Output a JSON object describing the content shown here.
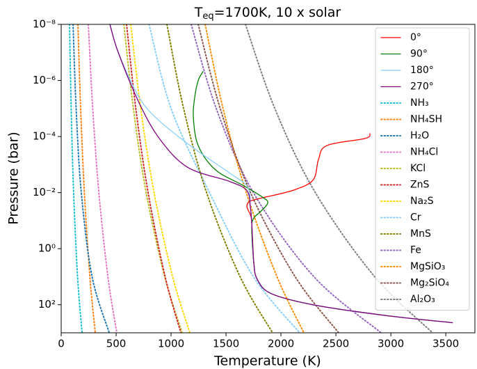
{
  "chart_data": {
    "type": "line",
    "title": [
      "T",
      "eq",
      "=1700K, 10 x solar"
    ],
    "x_label": "Temperature (K)",
    "y_label": "Pressure (bar)",
    "xlim": [
      0,
      3765
    ],
    "xticks": [
      0,
      500,
      1000,
      1500,
      2000,
      2500,
      3000,
      3500
    ],
    "ylim": [
      1000,
      1e-08
    ],
    "y_log": true,
    "yticks": [
      {
        "value": 1e-08,
        "label": "10⁻⁸"
      },
      {
        "value": 1e-06,
        "label": "10⁻⁶"
      },
      {
        "value": 0.0001,
        "label": "10⁻⁴"
      },
      {
        "value": 0.01,
        "label": "10⁻²"
      },
      {
        "value": 1,
        "label": "10⁰"
      },
      {
        "value": 100,
        "label": "10²"
      }
    ],
    "legend": "upper right",
    "series": [
      {
        "name": "0°",
        "color": "#ff0000",
        "style": "solid",
        "x": [
          2810,
          2766,
          2418,
          2342,
          2291,
          2101,
          1848,
          1722,
          1690,
          1722,
          1734,
          1753,
          1785,
          1911,
          2291,
          2924,
          3560
        ],
        "values": [
          7.9e-05,
          0.000117,
          0.00021,
          0.00065,
          0.0036,
          0.0085,
          0.0148,
          0.02,
          0.031,
          0.063,
          0.12,
          3.2,
          12.6,
          40,
          100,
          234,
          437
        ]
      },
      {
        "name": "90°",
        "color": "#008000",
        "style": "solid",
        "x": [
          1291,
          1247,
          1215,
          1203,
          1247,
          1405,
          1658,
          1835,
          1880,
          1816,
          1753,
          1734,
          1753,
          1785,
          1911,
          2291,
          2924,
          3560
        ],
        "values": [
          4.8e-07,
          1e-06,
          4e-06,
          2.1e-05,
          0.00021,
          0.00155,
          0.0056,
          0.0148,
          0.0234,
          0.047,
          0.081,
          0.19,
          3.2,
          12.6,
          40,
          100,
          234,
          437
        ]
      },
      {
        "name": "180°",
        "color": "#87cefa",
        "style": "solid",
        "x": [
          445,
          520,
          709,
          899,
          1215,
          1532,
          1696,
          1722,
          1734,
          1753,
          1785,
          1911,
          2291,
          2924,
          3560
        ],
        "values": [
          1e-08,
          1e-07,
          4e-06,
          2.9e-05,
          0.000275,
          0.002,
          0.0063,
          0.035,
          0.12,
          3.2,
          12.6,
          40,
          100,
          234,
          437
        ]
      },
      {
        "name": "270°",
        "color": "#800080",
        "style": "solid",
        "x": [
          443,
          519,
          709,
          899,
          1152,
          1532,
          1690,
          1722,
          1734,
          1753,
          1785,
          1911,
          2291,
          2924,
          3560
        ],
        "values": [
          1e-08,
          1e-07,
          6.3e-06,
          0.000126,
          0.00126,
          0.004,
          0.0085,
          0.035,
          0.12,
          3.2,
          12.6,
          40,
          100,
          234,
          437
        ]
      },
      {
        "name": "NH₃",
        "color": "#17becf",
        "style": "dotted",
        "x": [
          76,
          91,
          113,
          149,
          190
        ],
        "values": [
          1e-08,
          1e-05,
          0.01,
          10,
          1000
        ]
      },
      {
        "name": "NH₄SH",
        "color": "#ff7f0e",
        "style": "dotted",
        "x": [
          152,
          177,
          211,
          261,
          310
        ],
        "values": [
          1e-08,
          1e-05,
          0.01,
          10,
          1000
        ]
      },
      {
        "name": "H₂O",
        "color": "#1f77b4",
        "style": "dotted",
        "x": [
          108,
          136,
          183,
          281,
          437
        ],
        "values": [
          1e-08,
          1e-05,
          0.01,
          10,
          1000
        ]
      },
      {
        "name": "NH₄Cl",
        "color": "#e377c2",
        "style": "dotted",
        "x": [
          247,
          287,
          343,
          425,
          506
        ],
        "values": [
          1e-08,
          1e-05,
          0.01,
          10,
          1000
        ]
      },
      {
        "name": "KCl",
        "color": "#bcbd22",
        "style": "dotted",
        "x": [
          570,
          657,
          773,
          942,
          1101
        ],
        "values": [
          1e-08,
          1e-05,
          0.01,
          10,
          1000
        ]
      },
      {
        "name": "ZnS",
        "color": "#d62728",
        "style": "dotted",
        "x": [
          595,
          679,
          791,
          946,
          1089
        ],
        "values": [
          1e-08,
          1e-05,
          0.01,
          10,
          1000
        ]
      },
      {
        "name": "Na₂S",
        "color": "#ffd700",
        "style": "dotted",
        "x": [
          633,
          724,
          845,
          1014,
          1171
        ],
        "values": [
          1e-08,
          1e-05,
          0.01,
          10,
          1000
        ]
      },
      {
        "name": "Cr",
        "color": "#87cefa",
        "style": "dotted",
        "x": [
          800,
          1000,
          1350,
          1750,
          2170
        ],
        "values": [
          1e-08,
          1e-05,
          0.01,
          10,
          1000
        ]
      },
      {
        "name": "MnS",
        "color": "#808000",
        "style": "dotted",
        "x": [
          962,
          1114,
          1323,
          1628,
          1924
        ],
        "values": [
          1e-08,
          1e-05,
          0.01,
          10,
          1000
        ]
      },
      {
        "name": "Fe",
        "color": "#9467bd",
        "style": "dotted",
        "x": [
          1183,
          1411,
          1749,
          2300,
          2911
        ],
        "values": [
          1e-08,
          1e-05,
          0.01,
          10,
          1000
        ]
      },
      {
        "name": "MgSiO₃",
        "color": "#ff8c00",
        "style": "dotted",
        "x": [
          1310,
          1473,
          1684,
          1964,
          2209
        ],
        "values": [
          1e-08,
          1e-05,
          0.01,
          10,
          1000
        ]
      },
      {
        "name": "Mg₂SiO₄",
        "color": "#8c564b",
        "style": "dotted",
        "x": [
          1247,
          1447,
          1723,
          2129,
          2525
        ],
        "values": [
          1e-08,
          1e-05,
          0.01,
          10,
          1000
        ]
      },
      {
        "name": "Al₂O₃",
        "color": "#7f7f7f",
        "style": "dotted",
        "x": [
          1677,
          1944,
          2313,
          2853,
          3380
        ],
        "values": [
          1e-08,
          1e-05,
          0.01,
          10,
          1000
        ]
      }
    ]
  }
}
